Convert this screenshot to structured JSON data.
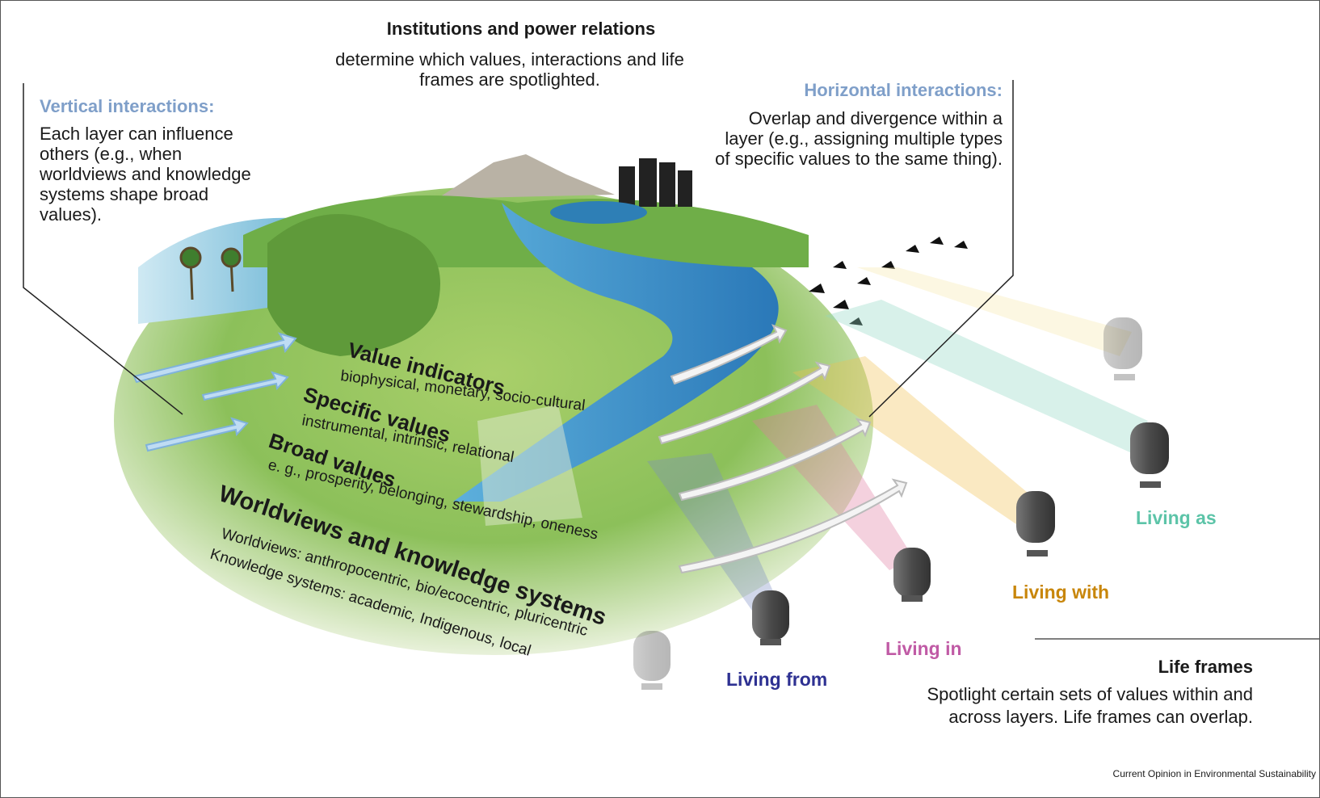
{
  "header": {
    "title": "Institutions and power relations",
    "subtitle": "determine which values, interactions and life frames are spotlighted."
  },
  "vertical_interactions": {
    "title": "Vertical interactions:",
    "text": "Each layer can influence others (e.g., when worldviews and knowledge systems shape broad values)."
  },
  "horizontal_interactions": {
    "title": "Horizontal interactions:",
    "text": "Overlap and divergence within a layer (e.g., assigning multiple types of specific values to the same thing)."
  },
  "layers": [
    {
      "name": "Value indicators",
      "examples": [
        "biophysical, monetary, socio-cultural"
      ]
    },
    {
      "name": "Specific values",
      "examples": [
        "instrumental, intrinsic, relational"
      ]
    },
    {
      "name": "Broad values",
      "examples": [
        "e. g., prosperity, belonging, stewardship, oneness"
      ]
    },
    {
      "name": "Worldviews and knowledge systems",
      "examples": [
        "Worldviews: anthropocentric, bio/ecocentric, pluricentric",
        "Knowledge systems: academic, Indigenous, local"
      ]
    }
  ],
  "life_frames": {
    "labels": [
      "Living from",
      "Living in",
      "Living with",
      "Living as"
    ],
    "title": "Life frames",
    "text": "Spotlight certain sets of values within and across layers. Life frames can overlap."
  },
  "credit": "Current Opinion in Environmental Sustainability"
}
